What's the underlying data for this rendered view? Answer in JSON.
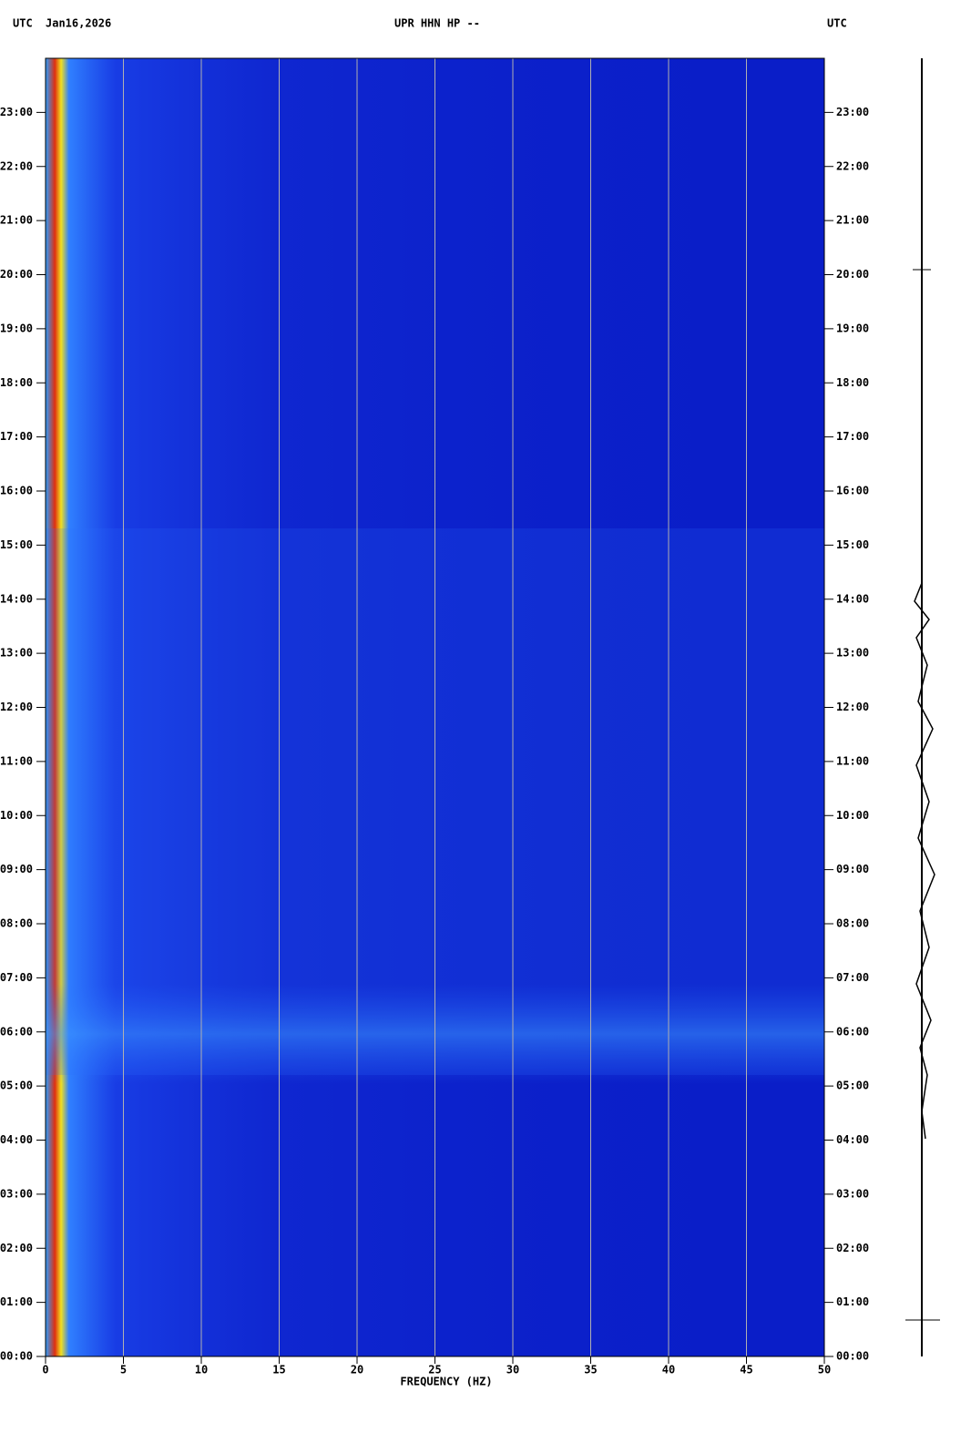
{
  "chart_data": {
    "type": "spectrogram",
    "timezone_left": "UTC",
    "date": "Jan16,2026",
    "title": "UPR HHN HP --",
    "timezone_right": "UTC",
    "xlabel": "FREQUENCY (HZ)",
    "xlim": [
      0,
      50
    ],
    "xticks": [
      0,
      5,
      10,
      15,
      20,
      25,
      30,
      35,
      40,
      45,
      50
    ],
    "ylim": [
      0,
      24
    ],
    "yticks": [
      {
        "value": 0,
        "label": "00:00"
      },
      {
        "value": 1,
        "label": "01:00"
      },
      {
        "value": 2,
        "label": "02:00"
      },
      {
        "value": 3,
        "label": "03:00"
      },
      {
        "value": 4,
        "label": "04:00"
      },
      {
        "value": 5,
        "label": "05:00"
      },
      {
        "value": 6,
        "label": "06:00"
      },
      {
        "value": 7,
        "label": "07:00"
      },
      {
        "value": 8,
        "label": "08:00"
      },
      {
        "value": 9,
        "label": "09:00"
      },
      {
        "value": 10,
        "label": "10:00"
      },
      {
        "value": 11,
        "label": "11:00"
      },
      {
        "value": 12,
        "label": "12:00"
      },
      {
        "value": 13,
        "label": "13:00"
      },
      {
        "value": 14,
        "label": "14:00"
      },
      {
        "value": 15,
        "label": "15:00"
      },
      {
        "value": 16,
        "label": "16:00"
      },
      {
        "value": 17,
        "label": "17:00"
      },
      {
        "value": 18,
        "label": "18:00"
      },
      {
        "value": 19,
        "label": "19:00"
      },
      {
        "value": 20,
        "label": "20:00"
      },
      {
        "value": 21,
        "label": "21:00"
      },
      {
        "value": 22,
        "label": "22:00"
      },
      {
        "value": 23,
        "label": "23:00"
      }
    ],
    "grid": true,
    "background_color": "#0a1ec8"
  }
}
